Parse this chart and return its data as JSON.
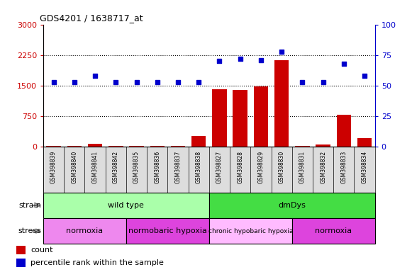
{
  "title": "GDS4201 / 1638717_at",
  "samples": [
    "GSM398839",
    "GSM398840",
    "GSM398841",
    "GSM398842",
    "GSM398835",
    "GSM398836",
    "GSM398837",
    "GSM398838",
    "GSM398827",
    "GSM398828",
    "GSM398829",
    "GSM398830",
    "GSM398831",
    "GSM398832",
    "GSM398833",
    "GSM398834"
  ],
  "counts": [
    30,
    25,
    80,
    20,
    25,
    20,
    15,
    270,
    1420,
    1390,
    1480,
    2130,
    25,
    50,
    780,
    220
  ],
  "percentiles": [
    53,
    53,
    58,
    53,
    53,
    53,
    53,
    53,
    70,
    72,
    71,
    78,
    53,
    53,
    68,
    58
  ],
  "ylim_left": [
    0,
    3000
  ],
  "ylim_right": [
    0,
    100
  ],
  "yticks_left": [
    0,
    750,
    1500,
    2250,
    3000
  ],
  "yticks_right": [
    0,
    25,
    50,
    75,
    100
  ],
  "bar_color": "#cc0000",
  "dot_color": "#0000cc",
  "strain_labels": [
    {
      "text": "wild type",
      "start": 0,
      "end": 8,
      "color": "#aaffaa"
    },
    {
      "text": "dmDys",
      "start": 8,
      "end": 16,
      "color": "#44dd44"
    }
  ],
  "stress_colors_list": [
    "#ee88ee",
    "#dd44dd",
    "#ffbbff",
    "#dd44dd"
  ],
  "stress_labels": [
    {
      "text": "normoxia",
      "start": 0,
      "end": 4
    },
    {
      "text": "normobaric hypoxia",
      "start": 4,
      "end": 8
    },
    {
      "text": "chronic hypobaric hypoxia",
      "start": 8,
      "end": 12
    },
    {
      "text": "normoxia",
      "start": 12,
      "end": 16
    }
  ],
  "bar_color_hex": "#cc0000",
  "dot_color_hex": "#0000cc",
  "tick_color_left": "#cc0000",
  "tick_color_right": "#0000cc",
  "bg_color": "#ffffff",
  "legend_count_label": "count",
  "legend_pct_label": "percentile rank within the sample"
}
